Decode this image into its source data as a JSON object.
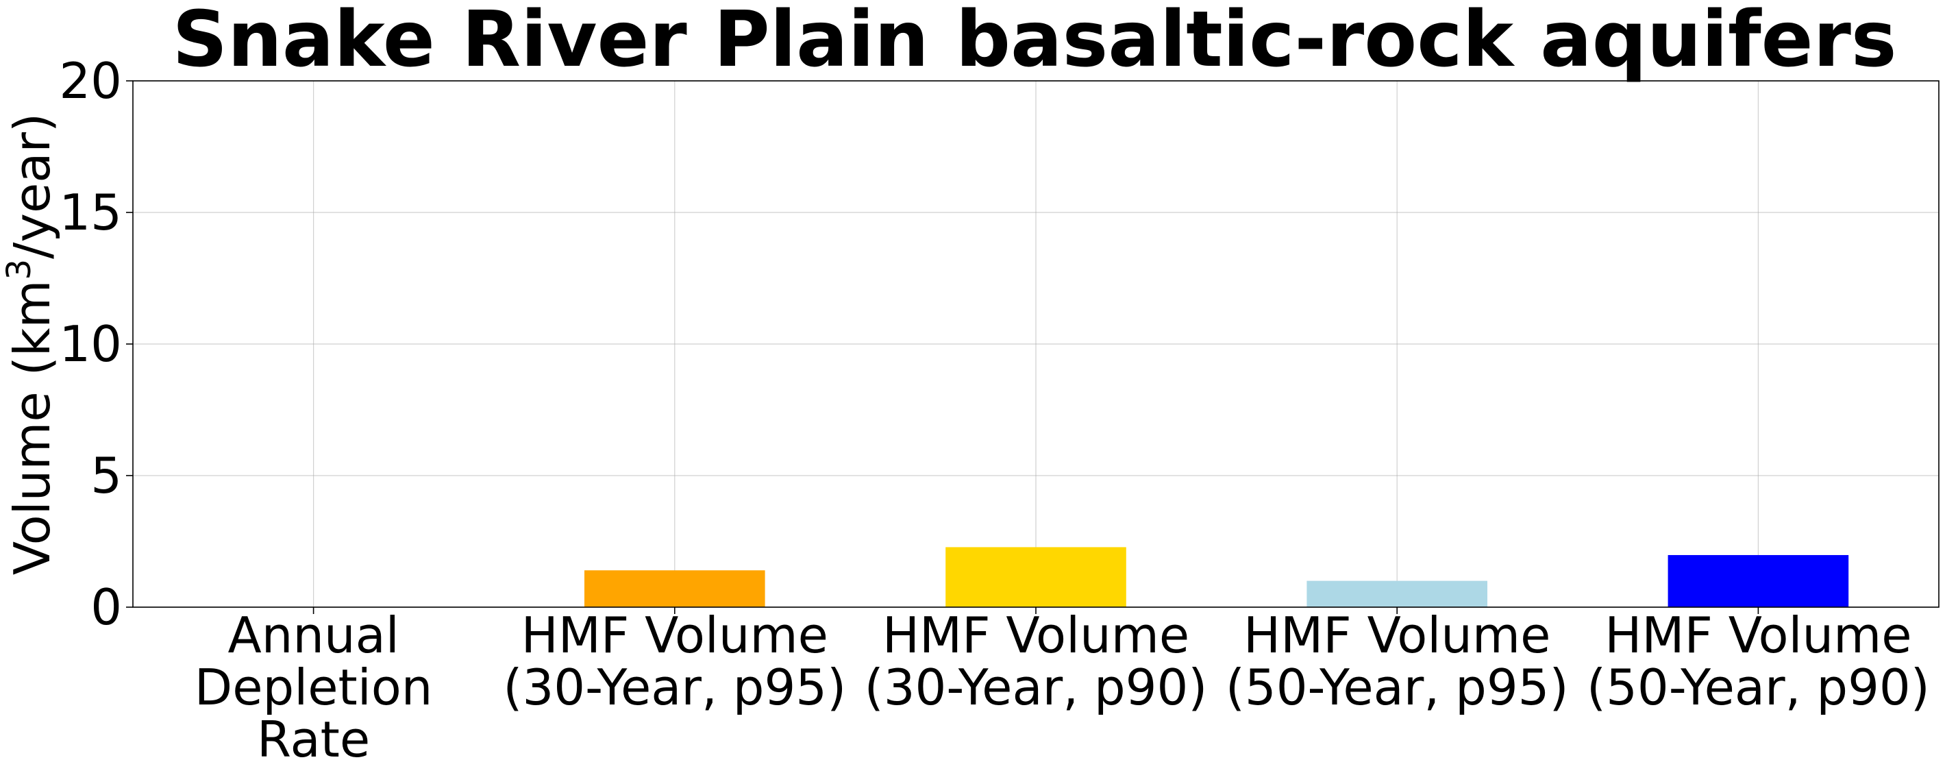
{
  "chart_data": {
    "type": "bar",
    "title": "Snake River Plain basaltic-rock aquifers",
    "xlabel": "",
    "ylabel": {
      "prefix": "Volume (km",
      "superscript": "3",
      "suffix": "/year)"
    },
    "ylim": [
      0,
      20
    ],
    "yticks": [
      "0",
      "5",
      "10",
      "15",
      "20"
    ],
    "grid": true,
    "categories": [
      [
        "Annual",
        "Depletion",
        "Rate"
      ],
      [
        "HMF Volume",
        "(30-Year, p95)"
      ],
      [
        "HMF Volume",
        "(30-Year, p90)"
      ],
      [
        "HMF Volume",
        "(50-Year, p95)"
      ],
      [
        "HMF Volume",
        "(50-Year, p90)"
      ]
    ],
    "values": [
      0,
      1.4,
      2.28,
      1.0,
      1.98
    ],
    "colors": [
      "#ff0000",
      "#ffa500",
      "#ffd700",
      "#add8e6",
      "#0000ff"
    ]
  }
}
